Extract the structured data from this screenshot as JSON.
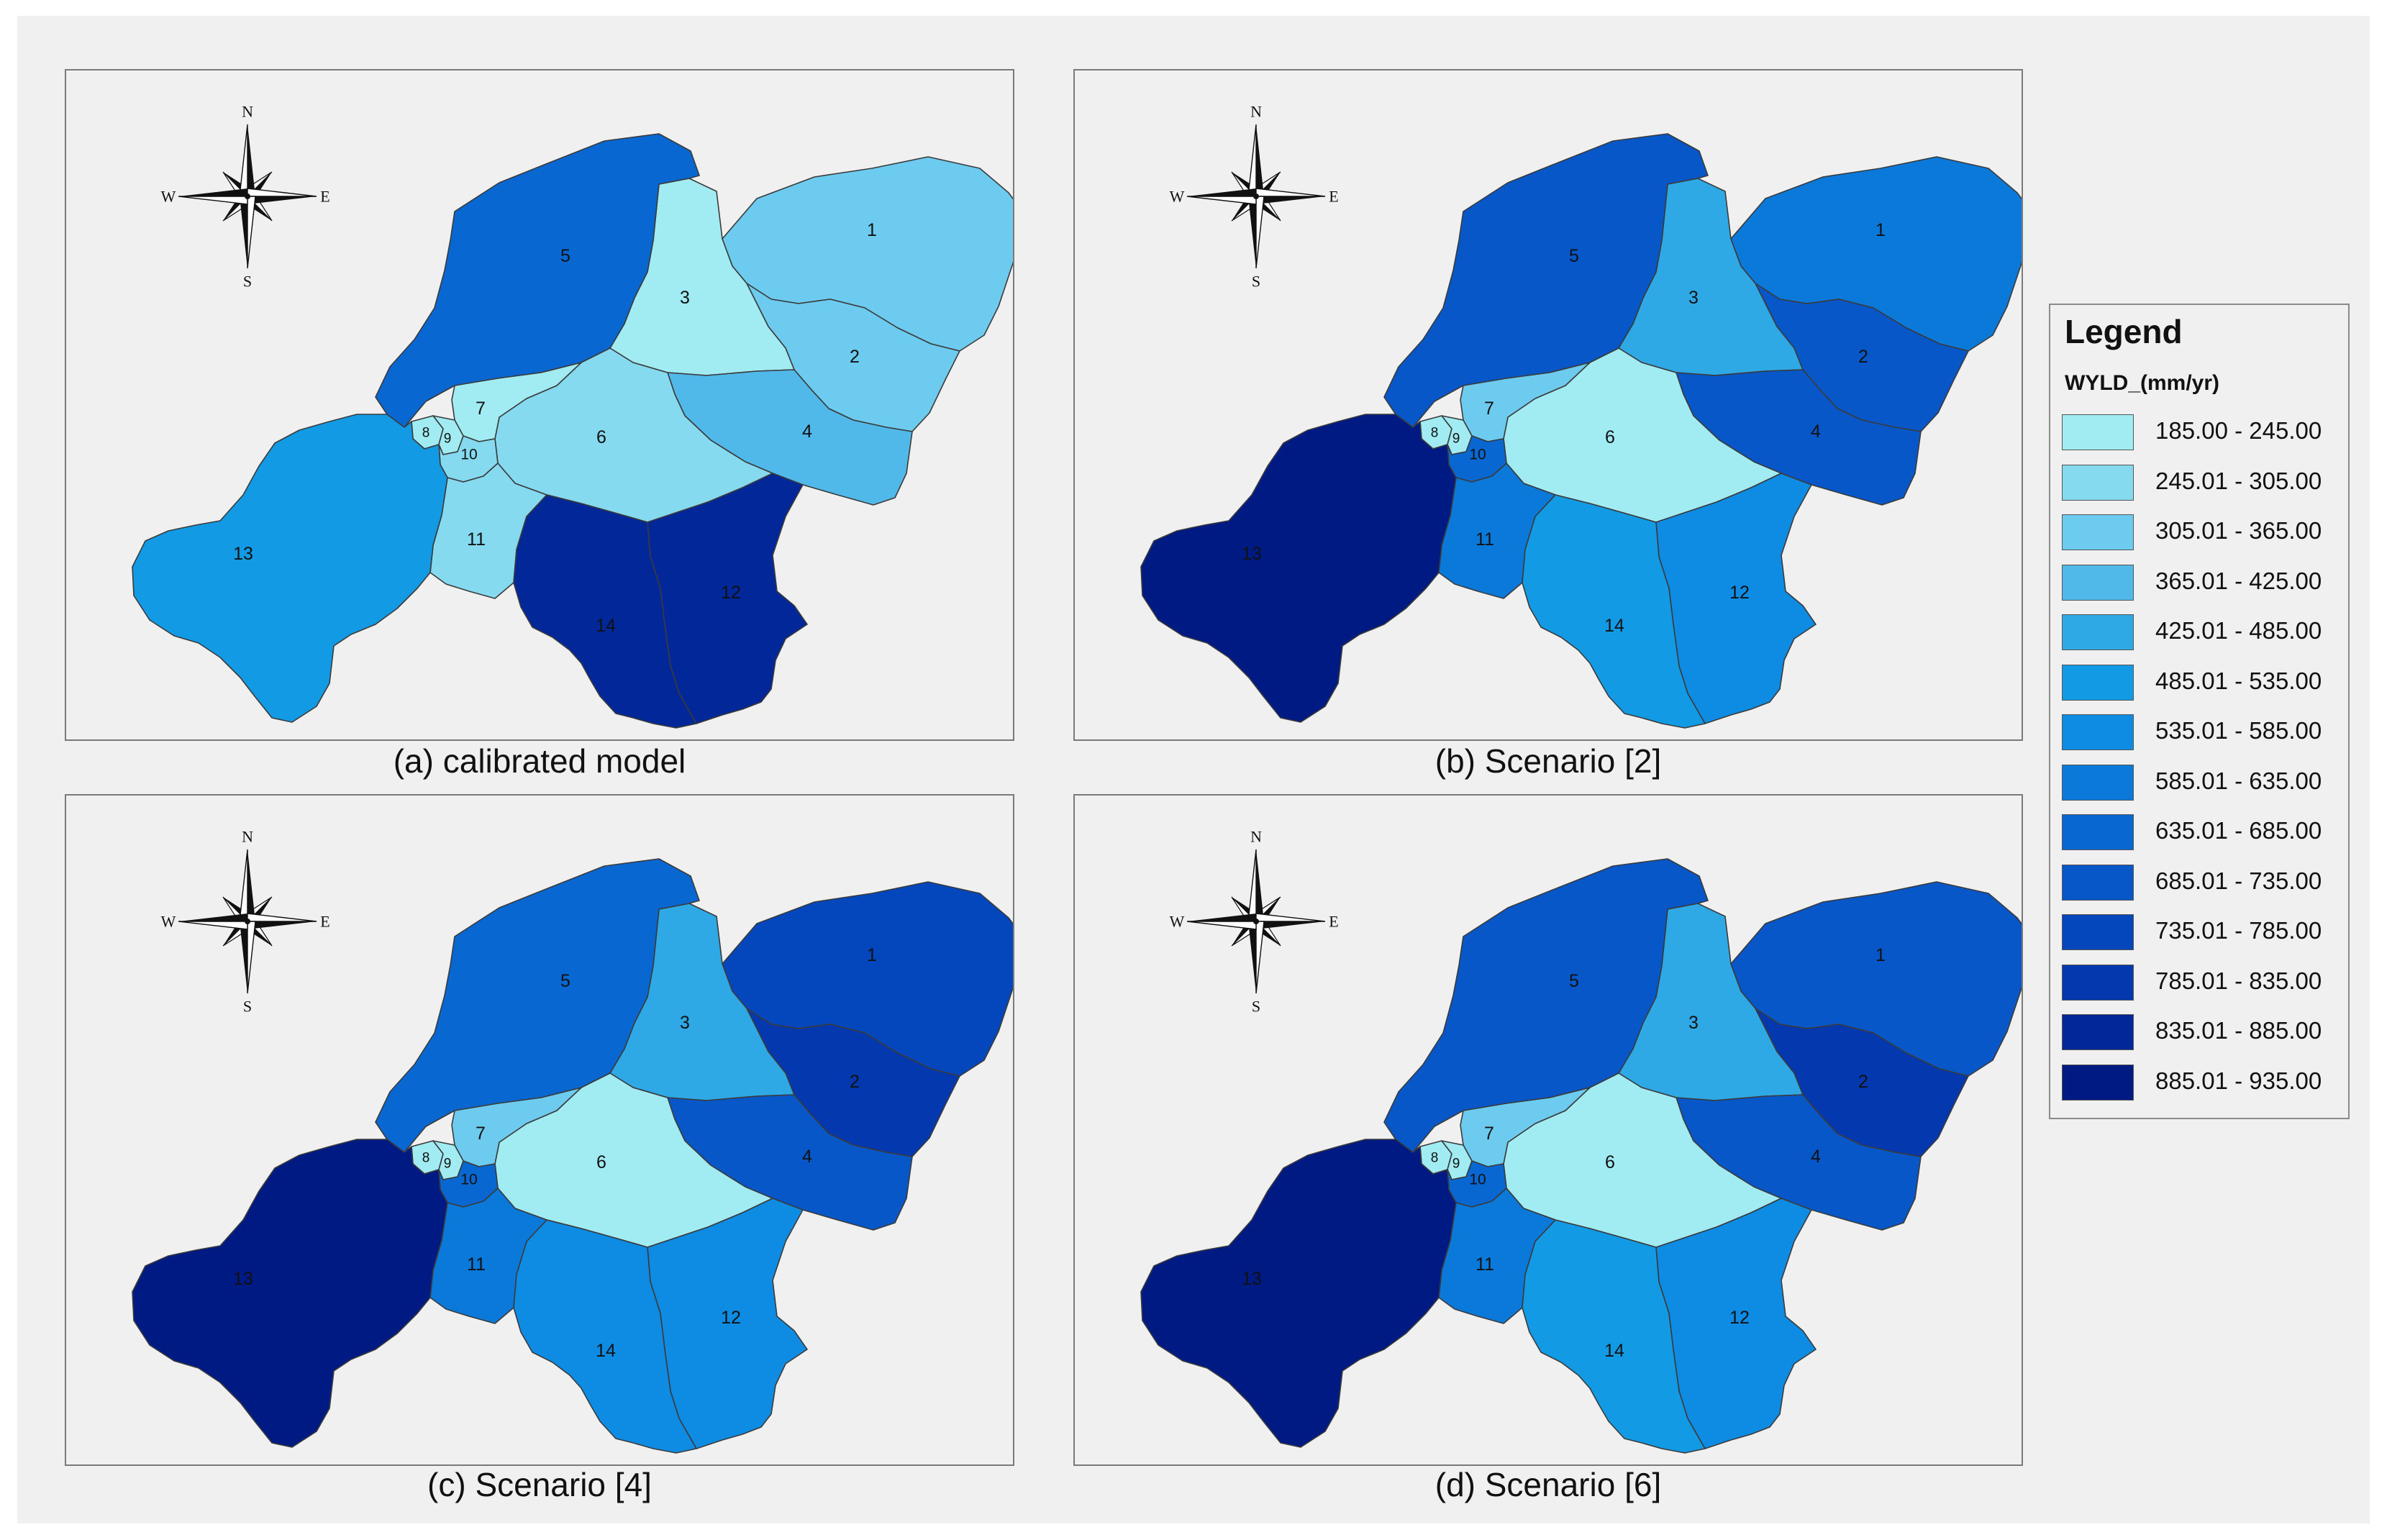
{
  "legend": {
    "title": "Legend",
    "field": "WYLD_(mm/yr)",
    "classes": [
      {
        "label": "185.00 - 245.00",
        "color": "#a1ebf2"
      },
      {
        "label": "245.01 - 305.00",
        "color": "#86daef"
      },
      {
        "label": "305.01 - 365.00",
        "color": "#6ccbee"
      },
      {
        "label": "365.01 - 425.00",
        "color": "#50b9ea"
      },
      {
        "label": "425.01 - 485.00",
        "color": "#2fa8e6"
      },
      {
        "label": "485.01 - 535.00",
        "color": "#139ae4"
      },
      {
        "label": "535.01 - 585.00",
        "color": "#0e8be3"
      },
      {
        "label": "585.01 - 635.00",
        "color": "#0b79da"
      },
      {
        "label": "635.01 - 685.00",
        "color": "#0967d2"
      },
      {
        "label": "685.01 - 735.00",
        "color": "#0757c9"
      },
      {
        "label": "735.01 - 785.00",
        "color": "#0447bc"
      },
      {
        "label": "785.01 - 835.00",
        "color": "#0338ae"
      },
      {
        "label": "835.01 - 885.00",
        "color": "#012799"
      },
      {
        "label": "885.01 - 935.00",
        "color": "#001a84"
      }
    ]
  },
  "compass": {
    "n": "N",
    "s": "S",
    "e": "E",
    "w": "W"
  },
  "panels": [
    {
      "caption": "(a) calibrated model",
      "fills": {
        "1": 2,
        "2": 2,
        "3": 0,
        "4": 3,
        "5": 8,
        "6": 1,
        "7": 0,
        "8": 0,
        "9": 0,
        "10": 1,
        "11": 1,
        "12": 12,
        "13": 5,
        "14": 12
      }
    },
    {
      "caption": "(b) Scenario [2]",
      "fills": {
        "1": 7,
        "2": 9,
        "3": 4,
        "4": 9,
        "5": 9,
        "6": 0,
        "7": 2,
        "8": 0,
        "9": 0,
        "10": 8,
        "11": 7,
        "12": 6,
        "13": 13,
        "14": 5
      }
    },
    {
      "caption": "(c) Scenario [4]",
      "fills": {
        "1": 10,
        "2": 11,
        "3": 4,
        "4": 9,
        "5": 8,
        "6": 0,
        "7": 2,
        "8": 0,
        "9": 0,
        "10": 8,
        "11": 7,
        "12": 6,
        "13": 13,
        "14": 6
      }
    },
    {
      "caption": "(d) Scenario [6]",
      "fills": {
        "1": 9,
        "2": 11,
        "3": 4,
        "4": 9,
        "5": 9,
        "6": 0,
        "7": 2,
        "8": 0,
        "9": 0,
        "10": 8,
        "11": 7,
        "12": 6,
        "13": 13,
        "14": 5
      }
    }
  ],
  "subbasins": [
    {
      "id": "1",
      "label": "1"
    },
    {
      "id": "2",
      "label": "2"
    },
    {
      "id": "3",
      "label": "3"
    },
    {
      "id": "4",
      "label": "4"
    },
    {
      "id": "5",
      "label": "5"
    },
    {
      "id": "6",
      "label": "6"
    },
    {
      "id": "7",
      "label": "7"
    },
    {
      "id": "8",
      "label": "8"
    },
    {
      "id": "9",
      "label": "9"
    },
    {
      "id": "10",
      "label": "10"
    },
    {
      "id": "11",
      "label": "11"
    },
    {
      "id": "12",
      "label": "12"
    },
    {
      "id": "13",
      "label": "13"
    },
    {
      "id": "14",
      "label": "14"
    }
  ]
}
